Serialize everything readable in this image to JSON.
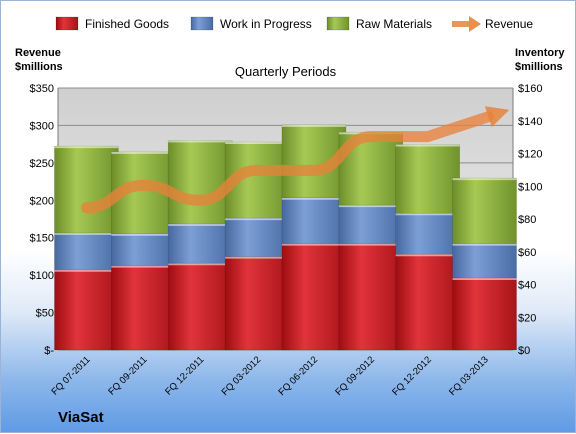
{
  "company": "ViaSat",
  "chart_data": {
    "type": "bar",
    "title": "Quarterly Periods",
    "stacked": true,
    "categories": [
      "FQ 07-2011",
      "FQ 09-2011",
      "FQ 12-2011",
      "FQ 03-2012",
      "FQ 06-2012",
      "FQ 09-2012",
      "FQ 12-2012",
      "FQ 03-2013"
    ],
    "series": [
      {
        "name": "Finished Goods",
        "axis": "right",
        "color": "#c0161c",
        "values": [
          49,
          51.5,
          53,
          57,
          65,
          65,
          58.5,
          44
        ]
      },
      {
        "name": "Work in Progress",
        "axis": "right",
        "color": "#5b7fbf",
        "values": [
          22.5,
          19.5,
          24,
          23.5,
          28,
          23.5,
          25,
          21
        ]
      },
      {
        "name": "Raw Materials",
        "axis": "right",
        "color": "#8db33a",
        "values": [
          53,
          50,
          51,
          46.5,
          44.5,
          44.5,
          42,
          40
        ]
      },
      {
        "name": "Revenue",
        "axis": "left",
        "type": "line",
        "color": "#e8823a",
        "values": [
          190,
          220,
          200,
          240,
          240,
          285,
          285,
          310
        ]
      }
    ],
    "y_left": {
      "label": [
        "Revenue",
        "$millions"
      ],
      "ylim": [
        0,
        350
      ],
      "ticks": [
        "$-",
        "$50",
        "$100",
        "$150",
        "$200",
        "$250",
        "$300",
        "$350"
      ]
    },
    "y_right": {
      "label": [
        "Inventory",
        "$millions"
      ],
      "ylim": [
        0,
        160
      ],
      "ticks": [
        "$0",
        "$20",
        "$40",
        "$60",
        "$80",
        "$100",
        "$120",
        "$140",
        "$160"
      ]
    },
    "grid": true,
    "legend": "top"
  }
}
